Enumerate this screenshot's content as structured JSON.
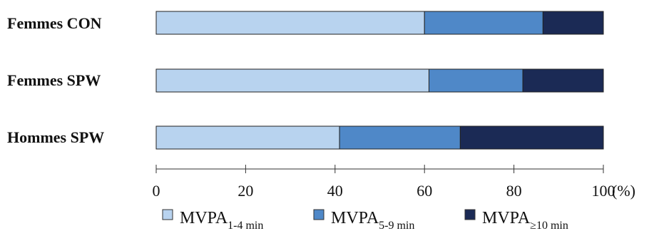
{
  "chart_data": {
    "type": "bar",
    "orientation": "horizontal",
    "stacked": true,
    "categories": [
      "Femmes CON",
      "Femmes SPW",
      "Hommes SPW"
    ],
    "series": [
      {
        "name": "MVPA",
        "name_sub": "1-4 min",
        "color": "#b8d3ef",
        "values": [
          60,
          61,
          41
        ]
      },
      {
        "name": "MVPA",
        "name_sub": "5-9 min",
        "color": "#4f88c8",
        "values": [
          26.5,
          21,
          27
        ]
      },
      {
        "name": "MVPA",
        "name_sub": "≥10 min",
        "color": "#1b2a55",
        "values": [
          13.5,
          18,
          32
        ]
      }
    ],
    "xticks": [
      "0",
      "20",
      "40",
      "60",
      "80",
      "100"
    ],
    "xunit": "(%)",
    "xlim": [
      0,
      100
    ],
    "grid": false,
    "legend": "bottom"
  }
}
